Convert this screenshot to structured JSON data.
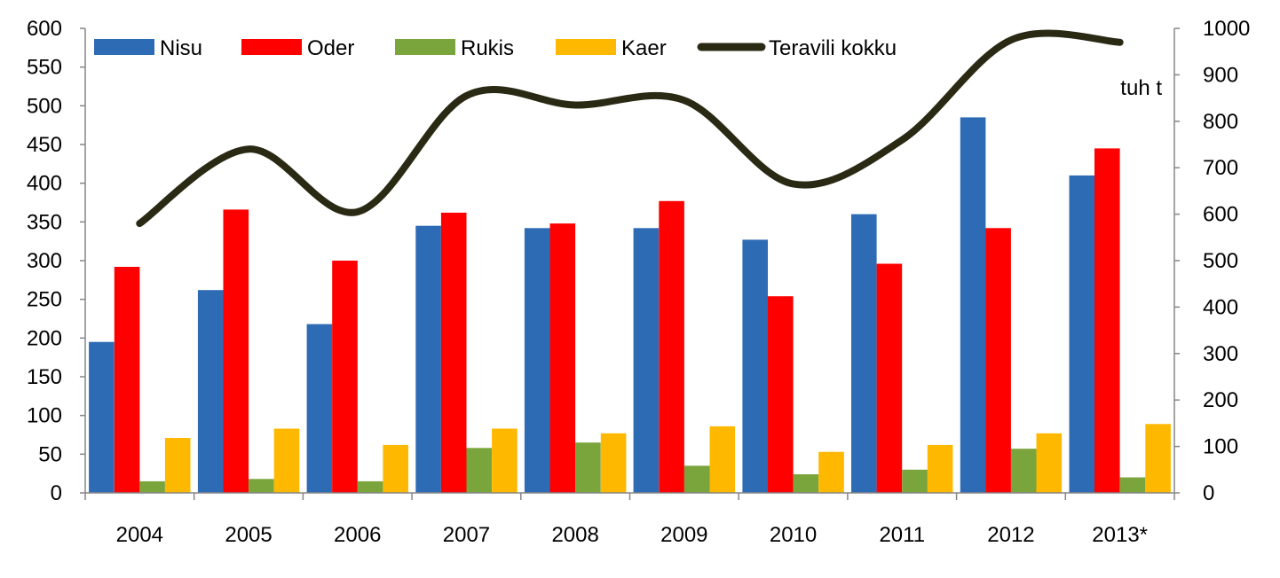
{
  "chart_data": {
    "type": "bar",
    "categories": [
      "2004",
      "2005",
      "2006",
      "2007",
      "2008",
      "2009",
      "2010",
      "2011",
      "2012",
      "2013*"
    ],
    "series": [
      {
        "name": "Nisu",
        "color": "#2e6bb5",
        "axis": "left",
        "values": [
          195,
          262,
          218,
          345,
          342,
          342,
          327,
          360,
          485,
          410
        ]
      },
      {
        "name": "Oder",
        "color": "#ff0000",
        "axis": "left",
        "values": [
          292,
          366,
          300,
          362,
          348,
          377,
          254,
          296,
          342,
          445
        ]
      },
      {
        "name": "Rukis",
        "color": "#7aa43c",
        "axis": "left",
        "values": [
          15,
          18,
          15,
          58,
          65,
          35,
          24,
          30,
          57,
          20
        ]
      },
      {
        "name": "Kaer",
        "color": "#ffb800",
        "axis": "left",
        "values": [
          71,
          83,
          62,
          83,
          77,
          86,
          53,
          62,
          77,
          89
        ]
      }
    ],
    "line_series": {
      "name": "Teravili kokku",
      "color": "#2a2a14",
      "axis": "right",
      "values": [
        580,
        740,
        605,
        855,
        835,
        845,
        665,
        760,
        975,
        970
      ]
    },
    "left_axis": {
      "min": 0,
      "max": 600,
      "ticks": [
        "0",
        "50",
        "100",
        "150",
        "200",
        "250",
        "300",
        "350",
        "400",
        "450",
        "500",
        "550",
        "600"
      ]
    },
    "right_axis": {
      "min": 0,
      "max": 1000,
      "label": "tuh t",
      "ticks": [
        "0",
        "100",
        "200",
        "300",
        "400",
        "500",
        "600",
        "700",
        "800",
        "900",
        "1000"
      ]
    },
    "legend": {
      "placement": "top",
      "entries": [
        "Nisu",
        "Oder",
        "Rukis",
        "Kaer",
        "Teravili kokku"
      ]
    },
    "grid": false
  }
}
